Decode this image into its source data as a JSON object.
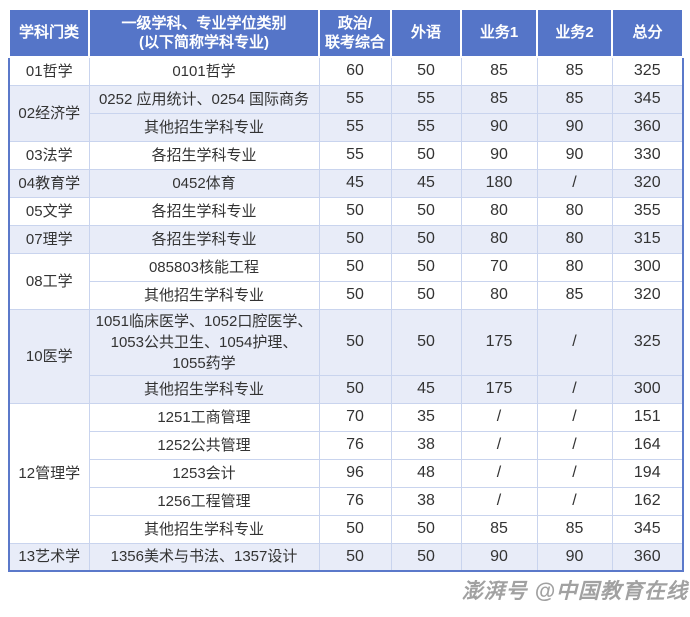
{
  "table": {
    "columns": [
      {
        "label": "学科门类"
      },
      {
        "label": "一级学科、专业学位类别\n(以下简称学科专业)"
      },
      {
        "label": "政治/\n联考综合"
      },
      {
        "label": "外语"
      },
      {
        "label": "业务1"
      },
      {
        "label": "业务2"
      },
      {
        "label": "总分"
      }
    ],
    "groups": [
      {
        "category": "01哲学",
        "rows": [
          {
            "major": "0101哲学",
            "politics": "60",
            "foreign": "50",
            "business1": "85",
            "business2": "85",
            "total": "325"
          }
        ]
      },
      {
        "category": "02经济学",
        "rows": [
          {
            "major": "0252 应用统计、0254 国际商务",
            "politics": "55",
            "foreign": "55",
            "business1": "85",
            "business2": "85",
            "total": "345"
          },
          {
            "major": "其他招生学科专业",
            "politics": "55",
            "foreign": "55",
            "business1": "90",
            "business2": "90",
            "total": "360"
          }
        ]
      },
      {
        "category": "03法学",
        "rows": [
          {
            "major": "各招生学科专业",
            "politics": "55",
            "foreign": "50",
            "business1": "90",
            "business2": "90",
            "total": "330"
          }
        ]
      },
      {
        "category": "04教育学",
        "rows": [
          {
            "major": "0452体育",
            "politics": "45",
            "foreign": "45",
            "business1": "180",
            "business2": "/",
            "total": "320"
          }
        ]
      },
      {
        "category": "05文学",
        "rows": [
          {
            "major": "各招生学科专业",
            "politics": "50",
            "foreign": "50",
            "business1": "80",
            "business2": "80",
            "total": "355"
          }
        ]
      },
      {
        "category": "07理学",
        "rows": [
          {
            "major": "各招生学科专业",
            "politics": "50",
            "foreign": "50",
            "business1": "80",
            "business2": "80",
            "total": "315"
          }
        ]
      },
      {
        "category": "08工学",
        "rows": [
          {
            "major": "085803核能工程",
            "politics": "50",
            "foreign": "50",
            "business1": "70",
            "business2": "80",
            "total": "300"
          },
          {
            "major": "其他招生学科专业",
            "politics": "50",
            "foreign": "50",
            "business1": "80",
            "business2": "85",
            "total": "320"
          }
        ]
      },
      {
        "category": "10医学",
        "rows": [
          {
            "major": "1051临床医学、1052口腔医学、\n1053公共卫生、1054护理、\n1055药学",
            "politics": "50",
            "foreign": "50",
            "business1": "175",
            "business2": "/",
            "total": "325"
          },
          {
            "major": "其他招生学科专业",
            "politics": "50",
            "foreign": "45",
            "business1": "175",
            "business2": "/",
            "total": "300"
          }
        ]
      },
      {
        "category": "12管理学",
        "rows": [
          {
            "major": "1251工商管理",
            "politics": "70",
            "foreign": "35",
            "business1": "/",
            "business2": "/",
            "total": "151"
          },
          {
            "major": "1252公共管理",
            "politics": "76",
            "foreign": "38",
            "business1": "/",
            "business2": "/",
            "total": "164"
          },
          {
            "major": "1253会计",
            "politics": "96",
            "foreign": "48",
            "business1": "/",
            "business2": "/",
            "total": "194"
          },
          {
            "major": "1256工程管理",
            "politics": "76",
            "foreign": "38",
            "business1": "/",
            "business2": "/",
            "total": "162"
          },
          {
            "major": "其他招生学科专业",
            "politics": "50",
            "foreign": "50",
            "business1": "85",
            "business2": "85",
            "total": "345"
          }
        ]
      },
      {
        "category": "13艺术学",
        "rows": [
          {
            "major": "1356美术与书法、1357设计",
            "politics": "50",
            "foreign": "50",
            "business1": "90",
            "business2": "90",
            "total": "360"
          }
        ]
      }
    ]
  },
  "watermark": {
    "text": "澎湃号 @中国教育在线"
  },
  "colors": {
    "header_bg": "#5575c8",
    "header_text": "#ffffff",
    "row_bg": "#ffffff",
    "row_alt_bg": "#e8ecf8",
    "border_inner": "#c9d4ee",
    "border_outer": "#5b79ca",
    "body_text": "#333333",
    "watermark_text": "#7d7d7d"
  }
}
